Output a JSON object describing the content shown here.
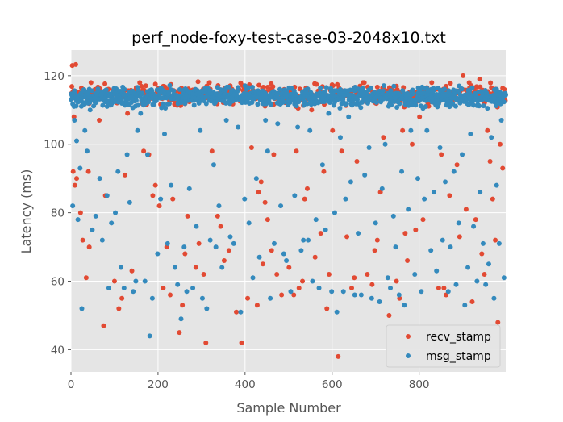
{
  "chart_data": {
    "type": "scatter",
    "title": "perf_node-foxy-test-case-03-2048x10.txt",
    "xlabel": "Sample Number",
    "ylabel": "Latency (ms)",
    "xlim": [
      0,
      999
    ],
    "ylim": [
      33.5,
      127.5
    ],
    "xticks": [
      0,
      200,
      400,
      600,
      800
    ],
    "yticks": [
      40,
      60,
      80,
      100,
      120
    ],
    "grid": true,
    "legend_position": "lower-right",
    "n_samples": 1000,
    "colors": {
      "background": "#E5E5E5",
      "grid": "#FFFFFF",
      "recv": "#E24A33",
      "msg": "#348ABD"
    },
    "series": [
      {
        "name": "recv_stamp",
        "color": "#E24A33",
        "band": {
          "center": 114.5,
          "spread": 2.8
        },
        "points": [
          [
            3,
            123
          ],
          [
            11,
            123.3
          ],
          [
            7,
            108
          ],
          [
            5,
            92
          ],
          [
            9,
            88
          ],
          [
            13,
            90
          ],
          [
            22,
            80
          ],
          [
            27,
            72
          ],
          [
            35,
            61
          ],
          [
            40,
            92
          ],
          [
            42,
            70
          ],
          [
            55,
            116
          ],
          [
            46,
            118
          ],
          [
            62,
            116
          ],
          [
            65,
            107
          ],
          [
            75,
            47
          ],
          [
            79,
            85
          ],
          [
            100,
            60
          ],
          [
            110,
            52
          ],
          [
            117,
            55
          ],
          [
            124,
            91
          ],
          [
            130,
            109
          ],
          [
            140,
            63
          ],
          [
            158,
            118
          ],
          [
            167,
            98
          ],
          [
            179,
            97
          ],
          [
            188,
            85
          ],
          [
            194,
            88
          ],
          [
            203,
            82
          ],
          [
            212,
            58
          ],
          [
            220,
            70
          ],
          [
            228,
            56
          ],
          [
            234,
            84
          ],
          [
            249,
            45
          ],
          [
            256,
            53
          ],
          [
            262,
            68
          ],
          [
            268,
            79
          ],
          [
            287,
            64
          ],
          [
            294,
            71
          ],
          [
            305,
            62
          ],
          [
            310,
            42
          ],
          [
            318,
            118
          ],
          [
            324,
            98
          ],
          [
            337,
            79
          ],
          [
            344,
            76
          ],
          [
            352,
            66
          ],
          [
            363,
            69
          ],
          [
            380,
            51
          ],
          [
            392,
            42
          ],
          [
            397,
            116
          ],
          [
            406,
            55
          ],
          [
            415,
            99
          ],
          [
            428,
            53
          ],
          [
            431,
            86
          ],
          [
            437,
            89
          ],
          [
            441,
            65
          ],
          [
            446,
            83
          ],
          [
            452,
            78
          ],
          [
            461,
            69
          ],
          [
            466,
            97
          ],
          [
            473,
            62
          ],
          [
            484,
            56
          ],
          [
            501,
            64
          ],
          [
            512,
            56
          ],
          [
            518,
            98
          ],
          [
            524,
            58
          ],
          [
            532,
            60
          ],
          [
            537,
            84
          ],
          [
            543,
            87
          ],
          [
            553,
            110
          ],
          [
            561,
            67
          ],
          [
            574,
            74
          ],
          [
            581,
            92
          ],
          [
            588,
            52
          ],
          [
            593,
            62
          ],
          [
            601,
            104
          ],
          [
            610,
            114
          ],
          [
            614,
            38
          ],
          [
            622,
            98
          ],
          [
            634,
            73
          ],
          [
            645,
            58
          ],
          [
            651,
            61
          ],
          [
            657,
            95
          ],
          [
            664,
            117
          ],
          [
            671,
            118
          ],
          [
            674,
            118
          ],
          [
            681,
            62
          ],
          [
            692,
            59
          ],
          [
            698,
            69
          ],
          [
            704,
            72
          ],
          [
            711,
            86
          ],
          [
            718,
            102
          ],
          [
            731,
            50
          ],
          [
            748,
            60
          ],
          [
            755,
            55
          ],
          [
            762,
            104
          ],
          [
            768,
            74
          ],
          [
            773,
            66
          ],
          [
            784,
            100
          ],
          [
            792,
            75
          ],
          [
            801,
            108
          ],
          [
            809,
            78
          ],
          [
            820,
            112
          ],
          [
            829,
            118
          ],
          [
            838,
            116
          ],
          [
            845,
            58
          ],
          [
            851,
            97
          ],
          [
            857,
            58
          ],
          [
            862,
            56
          ],
          [
            870,
            85
          ],
          [
            878,
            113
          ],
          [
            887,
            94
          ],
          [
            893,
            73
          ],
          [
            901,
            120
          ],
          [
            908,
            81
          ],
          [
            915,
            118
          ],
          [
            922,
            54
          ],
          [
            930,
            78
          ],
          [
            939,
            119
          ],
          [
            944,
            68
          ],
          [
            950,
            62
          ],
          [
            957,
            104
          ],
          [
            963,
            95
          ],
          [
            969,
            84
          ],
          [
            975,
            72
          ],
          [
            981,
            48
          ],
          [
            986,
            100
          ],
          [
            992,
            93
          ],
          [
            996,
            116
          ]
        ]
      },
      {
        "name": "msg_stamp",
        "color": "#348ABD",
        "band": {
          "center": 113.8,
          "spread": 2.6
        },
        "points": [
          [
            4,
            82
          ],
          [
            8,
            107
          ],
          [
            13,
            101
          ],
          [
            16,
            78
          ],
          [
            21,
            93
          ],
          [
            25,
            52
          ],
          [
            32,
            104
          ],
          [
            37,
            98
          ],
          [
            44,
            110
          ],
          [
            49,
            75
          ],
          [
            57,
            79
          ],
          [
            66,
            90
          ],
          [
            72,
            72
          ],
          [
            83,
            85
          ],
          [
            87,
            58
          ],
          [
            93,
            77
          ],
          [
            102,
            80
          ],
          [
            108,
            92
          ],
          [
            115,
            64
          ],
          [
            122,
            58
          ],
          [
            129,
            97
          ],
          [
            135,
            83
          ],
          [
            143,
            57
          ],
          [
            149,
            60
          ],
          [
            153,
            104
          ],
          [
            160,
            109
          ],
          [
            170,
            60
          ],
          [
            176,
            97
          ],
          [
            181,
            44
          ],
          [
            187,
            55
          ],
          [
            199,
            68
          ],
          [
            206,
            84
          ],
          [
            215,
            103
          ],
          [
            222,
            71
          ],
          [
            230,
            88
          ],
          [
            239,
            64
          ],
          [
            245,
            59
          ],
          [
            253,
            49
          ],
          [
            260,
            70
          ],
          [
            266,
            57
          ],
          [
            272,
            87
          ],
          [
            280,
            58
          ],
          [
            288,
            76
          ],
          [
            297,
            104
          ],
          [
            302,
            55
          ],
          [
            312,
            52
          ],
          [
            320,
            72
          ],
          [
            328,
            94
          ],
          [
            333,
            70
          ],
          [
            340,
            82
          ],
          [
            347,
            64
          ],
          [
            357,
            107
          ],
          [
            366,
            73
          ],
          [
            374,
            71
          ],
          [
            384,
            105
          ],
          [
            390,
            51
          ],
          [
            399,
            84
          ],
          [
            409,
            77
          ],
          [
            418,
            61
          ],
          [
            426,
            90
          ],
          [
            433,
            67
          ],
          [
            447,
            107
          ],
          [
            452,
            98
          ],
          [
            458,
            55
          ],
          [
            467,
            71
          ],
          [
            475,
            106
          ],
          [
            482,
            82
          ],
          [
            489,
            68
          ],
          [
            495,
            66
          ],
          [
            505,
            57
          ],
          [
            514,
            85
          ],
          [
            521,
            105
          ],
          [
            529,
            69
          ],
          [
            534,
            72
          ],
          [
            545,
            72
          ],
          [
            549,
            104
          ],
          [
            555,
            60
          ],
          [
            563,
            78
          ],
          [
            570,
            58
          ],
          [
            578,
            94
          ],
          [
            585,
            75
          ],
          [
            592,
            109
          ],
          [
            599,
            57
          ],
          [
            606,
            80
          ],
          [
            611,
            51
          ],
          [
            619,
            102
          ],
          [
            626,
            57
          ],
          [
            631,
            84
          ],
          [
            638,
            108
          ],
          [
            643,
            89
          ],
          [
            652,
            56
          ],
          [
            660,
            74
          ],
          [
            667,
            56
          ],
          [
            675,
            91
          ],
          [
            685,
            99
          ],
          [
            691,
            55
          ],
          [
            700,
            77
          ],
          [
            709,
            54
          ],
          [
            715,
            87
          ],
          [
            722,
            100
          ],
          [
            728,
            61
          ],
          [
            734,
            58
          ],
          [
            741,
            79
          ],
          [
            746,
            70
          ],
          [
            754,
            56
          ],
          [
            760,
            92
          ],
          [
            766,
            53
          ],
          [
            775,
            81
          ],
          [
            781,
            104
          ],
          [
            790,
            62
          ],
          [
            797,
            90
          ],
          [
            805,
            57
          ],
          [
            812,
            84
          ],
          [
            818,
            104
          ],
          [
            827,
            69
          ],
          [
            834,
            86
          ],
          [
            840,
            63
          ],
          [
            848,
            99
          ],
          [
            854,
            72
          ],
          [
            860,
            89
          ],
          [
            867,
            57
          ],
          [
            872,
            70
          ],
          [
            880,
            92
          ],
          [
            885,
            59
          ],
          [
            891,
            77
          ],
          [
            899,
            97
          ],
          [
            905,
            53
          ],
          [
            912,
            64
          ],
          [
            918,
            103
          ],
          [
            925,
            76
          ],
          [
            933,
            60
          ],
          [
            940,
            86
          ],
          [
            947,
            71
          ],
          [
            953,
            59
          ],
          [
            960,
            65
          ],
          [
            966,
            102
          ],
          [
            972,
            55
          ],
          [
            978,
            88
          ],
          [
            984,
            71
          ],
          [
            989,
            107
          ],
          [
            995,
            61
          ]
        ]
      }
    ]
  }
}
